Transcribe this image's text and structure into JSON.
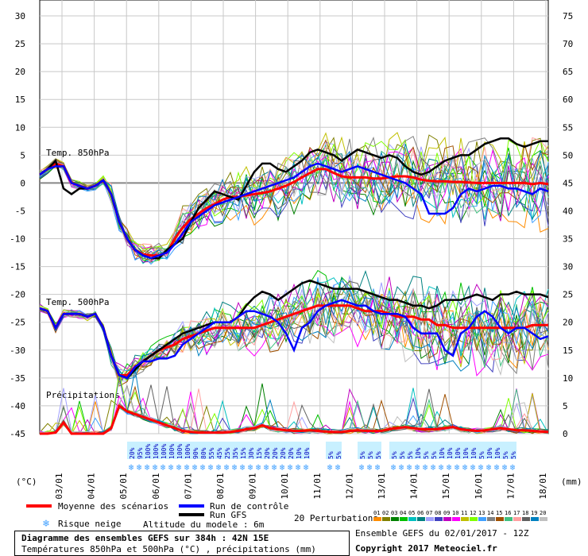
{
  "chart_data": {
    "type": "line",
    "title": "Diagramme des ensembles GEFS sur 384h : 42N 15E",
    "subtitle": "Températures 850hPa et 500hPa (°C) , précipitations (mm)",
    "left_axis_unit": "(°C)",
    "right_axis_unit": "(mm)",
    "left_ylim": [
      -45,
      30
    ],
    "left_ticks": [
      30,
      25,
      20,
      15,
      10,
      5,
      0,
      -5,
      -10,
      -15,
      -20,
      -25,
      -30,
      -35,
      -40,
      -45
    ],
    "right_ylim": [
      0,
      75
    ],
    "right_ticks": [
      75,
      70,
      65,
      60,
      55,
      50,
      45,
      40,
      35,
      30,
      25,
      20,
      15,
      10,
      5,
      0
    ],
    "x_labels": [
      "03/01",
      "04/01",
      "05/01",
      "06/01",
      "07/01",
      "08/01",
      "09/01",
      "10/01",
      "11/01",
      "12/01",
      "13/01",
      "14/01",
      "15/01",
      "16/01",
      "17/01",
      "18/01"
    ],
    "grid": true,
    "panel_labels": [
      "Temp. 850hPa",
      "Temp. 500hPa",
      "Précipitations"
    ],
    "legend": {
      "mean": "Moyenne des scénarios",
      "control": "Run de contrôle",
      "gfs": "Run GFS",
      "snow": "Risque neige",
      "altitude": "Altitude du modele : 6m",
      "perturbations": "20 Perturbations",
      "pert_numbers": [
        "01",
        "02",
        "03",
        "04",
        "05",
        "06",
        "07",
        "08",
        "09",
        "10",
        "11",
        "12",
        "13",
        "14",
        "15",
        "16",
        "17",
        "18",
        "19",
        "20"
      ]
    },
    "info": "Ensemble GEFS du 02/01/2017 - 12Z",
    "copyright": "Copyright 2017 Meteociel.fr",
    "series": [
      {
        "name": "Moyenne des scénarios",
        "color": "#ff0000",
        "panel": "850",
        "x": [
          0,
          1,
          2,
          3,
          4,
          5,
          6,
          7,
          8,
          9,
          10,
          11,
          12,
          13,
          14,
          15,
          16,
          17,
          18,
          19,
          20,
          21,
          22,
          23,
          24,
          25,
          26,
          27,
          28,
          29,
          30,
          31,
          32,
          33,
          34,
          35,
          36,
          37,
          38,
          39,
          40,
          41,
          42,
          43,
          44,
          45,
          46,
          47,
          48,
          49,
          50,
          51,
          52,
          53,
          54,
          55,
          56,
          57,
          58,
          59,
          60,
          61,
          62,
          63,
          64
        ],
        "values": [
          1.5,
          2.5,
          3.5,
          3,
          0,
          -0.5,
          -1,
          -0.5,
          0.5,
          -2,
          -7,
          -10,
          -12,
          -12.8,
          -13,
          -13,
          -12.5,
          -10,
          -8,
          -6.5,
          -5.5,
          -4.5,
          -3.8,
          -3,
          -2.5,
          -2.5,
          -2.2,
          -2,
          -1.8,
          -1.5,
          -1,
          -0.5,
          0.2,
          1,
          1.8,
          2.5,
          2.5,
          1.8,
          1.2,
          1,
          1,
          1,
          0.8,
          0.8,
          1,
          1.2,
          1.2,
          1,
          0.6,
          0.4,
          0.3,
          0.3,
          0.2,
          0.2,
          0.1,
          0,
          0,
          0,
          0,
          0,
          0,
          0,
          -0.2,
          0,
          -0.2
        ]
      },
      {
        "name": "Run GFS",
        "color": "#000000",
        "panel": "850",
        "x": [
          0,
          1,
          2,
          3,
          4,
          5,
          6,
          7,
          8,
          9,
          10,
          11,
          12,
          13,
          14,
          15,
          16,
          17,
          18,
          19,
          20,
          21,
          22,
          23,
          24,
          25,
          26,
          27,
          28,
          29,
          30,
          31,
          32,
          33,
          34,
          35,
          36,
          37,
          38,
          39,
          40,
          41,
          42,
          43,
          44,
          45,
          46,
          47,
          48,
          49,
          50,
          51,
          52,
          53,
          54,
          55,
          56,
          57,
          58,
          59,
          60,
          61,
          62,
          63,
          64
        ],
        "values": [
          1.5,
          2.5,
          4,
          -1,
          -2,
          -1,
          -1,
          -0.5,
          0.5,
          -2,
          -7,
          -10,
          -12,
          -13,
          -13.5,
          -13.5,
          -12,
          -11,
          -10,
          -7,
          -4.5,
          -3,
          -1.5,
          -2,
          -2.5,
          -3,
          -0.5,
          2,
          3.5,
          3.5,
          2.5,
          2,
          3,
          4,
          5.5,
          6,
          5.5,
          5,
          4,
          5,
          6,
          5.5,
          5,
          4.5,
          5,
          4.5,
          3,
          2,
          1.5,
          2,
          3,
          4,
          4.5,
          5,
          5,
          6,
          7,
          7.5,
          8,
          8,
          7,
          6.5,
          7,
          7.5,
          7.5
        ]
      },
      {
        "name": "Run de contrôle",
        "color": "#0000ff",
        "panel": "850",
        "x": [
          0,
          1,
          2,
          3,
          4,
          5,
          6,
          7,
          8,
          9,
          10,
          11,
          12,
          13,
          14,
          15,
          16,
          17,
          18,
          19,
          20,
          21,
          22,
          23,
          24,
          25,
          26,
          27,
          28,
          29,
          30,
          31,
          32,
          33,
          34,
          35,
          36,
          37,
          38,
          39,
          40,
          41,
          42,
          43,
          44,
          45,
          46,
          47,
          48,
          49,
          50,
          51,
          52,
          53,
          54,
          55,
          56,
          57,
          58,
          59,
          60,
          61,
          62,
          63,
          64
        ],
        "values": [
          1.5,
          2.5,
          3,
          3,
          0,
          -0.5,
          -1,
          -0.5,
          0.5,
          -2,
          -7,
          -10,
          -12,
          -13,
          -13.5,
          -13,
          -12.5,
          -11,
          -9,
          -7,
          -6,
          -5,
          -4,
          -3.5,
          -3,
          -2.5,
          -2,
          -1.5,
          -1,
          -0.5,
          0,
          0.5,
          1,
          2,
          3,
          3.5,
          3,
          2.5,
          2,
          2.5,
          3,
          2.5,
          2,
          1.5,
          1,
          0.5,
          0,
          -1,
          -2,
          -5.5,
          -5.5,
          -5.5,
          -4.5,
          -2,
          -1,
          -1.5,
          -1,
          -0.5,
          -0.5,
          -1,
          -1,
          -1.5,
          -2,
          -1,
          -1.5
        ]
      },
      {
        "name": "Moyenne des scénarios",
        "color": "#ff0000",
        "panel": "500",
        "x": [
          0,
          1,
          2,
          3,
          4,
          5,
          6,
          7,
          8,
          9,
          10,
          11,
          12,
          13,
          14,
          15,
          16,
          17,
          18,
          19,
          20,
          21,
          22,
          23,
          24,
          25,
          26,
          27,
          28,
          29,
          30,
          31,
          32,
          33,
          34,
          35,
          36,
          37,
          38,
          39,
          40,
          41,
          42,
          43,
          44,
          45,
          46,
          47,
          48,
          49,
          50,
          51,
          52,
          53,
          54,
          55,
          56,
          57,
          58,
          59,
          60,
          61,
          62,
          63,
          64
        ],
        "values": [
          -22.5,
          -23,
          -26,
          -23.5,
          -23.5,
          -23.5,
          -24,
          -23.5,
          -26,
          -31,
          -34.5,
          -34.5,
          -33,
          -32,
          -31,
          -30,
          -29.5,
          -29,
          -28,
          -27.5,
          -27,
          -26.5,
          -26,
          -26,
          -26,
          -26,
          -26,
          -26,
          -25.5,
          -25,
          -24.5,
          -24,
          -23.5,
          -23,
          -22.5,
          -22,
          -22,
          -22,
          -22,
          -22,
          -22.5,
          -23,
          -23,
          -23,
          -23.5,
          -24,
          -24,
          -24,
          -24.5,
          -24.5,
          -25.5,
          -25.5,
          -26,
          -26,
          -26,
          -26,
          -26,
          -26,
          -26,
          -26,
          -26,
          -26,
          -25.5,
          -25.5,
          -25.5
        ]
      },
      {
        "name": "Run GFS",
        "color": "#000000",
        "panel": "500",
        "x": [
          0,
          1,
          2,
          3,
          4,
          5,
          6,
          7,
          8,
          9,
          10,
          11,
          12,
          13,
          14,
          15,
          16,
          17,
          18,
          19,
          20,
          21,
          22,
          23,
          24,
          25,
          26,
          27,
          28,
          29,
          30,
          31,
          32,
          33,
          34,
          35,
          36,
          37,
          38,
          39,
          40,
          41,
          42,
          43,
          44,
          45,
          46,
          47,
          48,
          49,
          50,
          51,
          52,
          53,
          54,
          55,
          56,
          57,
          58,
          59,
          60,
          61,
          62,
          63,
          64
        ],
        "values": [
          -22.5,
          -23,
          -26,
          -23.5,
          -23.5,
          -23.5,
          -24,
          -23.5,
          -26,
          -31,
          -34.5,
          -35,
          -33.5,
          -32,
          -31,
          -30,
          -29,
          -28,
          -27,
          -26.5,
          -26,
          -25.5,
          -25,
          -25,
          -25,
          -24,
          -22,
          -20.5,
          -19.5,
          -20,
          -21,
          -20,
          -19,
          -18,
          -17.5,
          -18,
          -18.5,
          -19,
          -19,
          -19,
          -19,
          -19.5,
          -20,
          -20.5,
          -21,
          -21,
          -21.5,
          -22,
          -22,
          -22.5,
          -22,
          -21,
          -21,
          -21,
          -20.5,
          -20,
          -20.5,
          -21,
          -20,
          -20,
          -19.5,
          -20,
          -20,
          -20,
          -20.5
        ]
      },
      {
        "name": "Run de contrôle",
        "color": "#0000ff",
        "panel": "500",
        "x": [
          0,
          1,
          2,
          3,
          4,
          5,
          6,
          7,
          8,
          9,
          10,
          11,
          12,
          13,
          14,
          15,
          16,
          17,
          18,
          19,
          20,
          21,
          22,
          23,
          24,
          25,
          26,
          27,
          28,
          29,
          30,
          31,
          32,
          33,
          34,
          35,
          36,
          37,
          38,
          39,
          40,
          41,
          42,
          43,
          44,
          45,
          46,
          47,
          48,
          49,
          50,
          51,
          52,
          53,
          54,
          55,
          56,
          57,
          58,
          59,
          60,
          61,
          62,
          63,
          64
        ],
        "values": [
          -22.5,
          -23,
          -26,
          -23.5,
          -23.5,
          -23.5,
          -24,
          -23.5,
          -26,
          -31,
          -34.5,
          -35,
          -33,
          -32,
          -32,
          -31.5,
          -31.5,
          -31,
          -29,
          -28,
          -27,
          -26,
          -25,
          -25,
          -25,
          -24,
          -23,
          -23,
          -23.5,
          -24,
          -25,
          -27,
          -30,
          -26,
          -25,
          -23,
          -22,
          -21.5,
          -21,
          -21.5,
          -22,
          -22,
          -23,
          -23.5,
          -23.5,
          -23.5,
          -24,
          -26,
          -27,
          -27,
          -27,
          -30,
          -31,
          -27,
          -26,
          -24,
          -23,
          -24,
          -26,
          -27,
          -26,
          -26,
          -27,
          -28,
          -27.5
        ]
      }
    ],
    "precip_mean": {
      "name": "Moyenne des scénarios",
      "color": "#ff0000",
      "panel": "precip",
      "x": [
        0,
        1,
        2,
        3,
        4,
        5,
        6,
        7,
        8,
        9,
        10,
        11,
        12,
        13,
        14,
        15,
        16,
        17,
        18,
        19,
        20,
        21,
        22,
        23,
        24,
        25,
        26,
        27,
        28,
        29,
        30,
        31,
        32,
        33,
        34,
        35,
        36,
        37,
        38,
        39,
        40,
        41,
        42,
        43,
        44,
        45,
        46,
        47,
        48,
        49,
        50,
        51,
        52,
        53,
        54,
        55,
        56,
        57,
        58,
        59,
        60,
        61,
        62,
        63,
        64
      ],
      "values": [
        0,
        0,
        0.2,
        2,
        0,
        0,
        0,
        0,
        0,
        1,
        5,
        4,
        3.5,
        3,
        2.5,
        2,
        1.5,
        1,
        0.5,
        0.3,
        0.2,
        0.2,
        0.2,
        0.2,
        0.3,
        0.5,
        0.8,
        1,
        1.5,
        1,
        0.8,
        0.6,
        0.5,
        0.5,
        0.6,
        0.5,
        0.4,
        0.3,
        0.3,
        0.5,
        0.6,
        0.5,
        0.5,
        0.5,
        0.8,
        1,
        1.2,
        1,
        0.8,
        0.8,
        0.8,
        1,
        1.2,
        0.8,
        0.6,
        0.5,
        0.6,
        0.8,
        1,
        0.8,
        0.6,
        0.6,
        0.5,
        0.4,
        0.3
      ]
    },
    "snow_risk": {
      "labels": [
        "20%",
        "95%",
        "100%",
        "100%",
        "100%",
        "100%",
        "100%",
        "100%",
        "90%",
        "80%",
        "55%",
        "45%",
        "25%",
        "35%",
        "15%",
        "30%",
        "15%",
        "20%",
        "20%",
        "20%",
        "20%",
        "10%",
        "10%",
        "5%",
        "5%",
        "5%",
        "5%",
        "5%",
        "5%",
        "5%",
        "5%",
        "10%",
        "5%",
        "5%",
        "10%",
        "10%",
        "10%",
        "10%",
        "10%",
        "5%",
        "10%",
        "10%",
        "5%",
        "5%"
      ],
      "x": [
        11.5,
        12.5,
        13.5,
        14.5,
        15.5,
        16.5,
        17.5,
        18.5,
        19.5,
        20.5,
        21.5,
        22.5,
        23.5,
        24.5,
        25.5,
        26.5,
        27.5,
        28.5,
        29.5,
        30.5,
        31.5,
        32.5,
        33.5,
        36.5,
        37.5,
        40.5,
        41.5,
        42.5,
        44.5,
        45.5,
        46.5,
        47.5,
        48.5,
        49.5,
        50.5,
        51.5,
        52.5,
        53.5,
        54.5,
        55.5,
        56.5,
        57.5,
        58.5,
        59.5
      ]
    }
  }
}
